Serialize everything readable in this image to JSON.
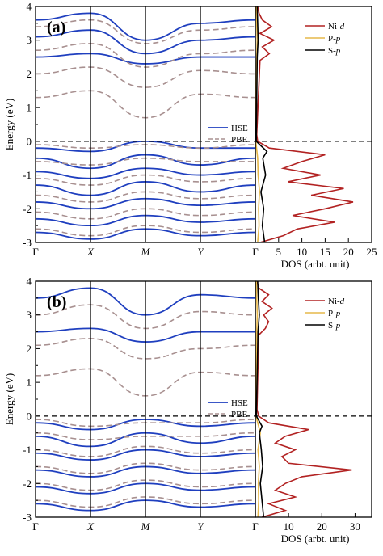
{
  "figure": {
    "panels": [
      {
        "label": "(a)",
        "band_legend": [
          {
            "name": "HSE",
            "color": "#1f3fbf",
            "dash": "solid"
          },
          {
            "name": "PBE",
            "color": "#a89090",
            "dash": "dashed"
          }
        ],
        "dos_legend": [
          {
            "name": "Ni-",
            "suffix": "d",
            "color": "#b22222"
          },
          {
            "name": "P-",
            "suffix": "p",
            "color": "#e6b84a"
          },
          {
            "name": "S-",
            "suffix": "p",
            "color": "#000000"
          }
        ],
        "dos_ticks": [
          5,
          10,
          15,
          20,
          25
        ]
      },
      {
        "label": "(b)",
        "band_legend": [
          {
            "name": "HSE",
            "color": "#1f3fbf",
            "dash": "solid"
          },
          {
            "name": "PBE",
            "color": "#a89090",
            "dash": "dashed"
          }
        ],
        "dos_legend": [
          {
            "name": "Ni-",
            "suffix": "d",
            "color": "#b22222"
          },
          {
            "name": "P-",
            "suffix": "p",
            "color": "#e6b84a"
          },
          {
            "name": "S-",
            "suffix": "p",
            "color": "#000000"
          }
        ],
        "dos_ticks": [
          10,
          20,
          30
        ]
      }
    ],
    "ylabel": "Energy (eV)",
    "dos_xlabel": "DOS (arbt. unit)"
  },
  "chart_data": [
    {
      "type": "line",
      "title": "(a)",
      "ylabel": "Energy (eV)",
      "ylim": [
        -3,
        4
      ],
      "yticks": [
        -3,
        -2,
        -1,
        0,
        1,
        2,
        3,
        4
      ],
      "kpath": [
        "Γ",
        "X",
        "M",
        "Y",
        "Γ"
      ],
      "fermi_level": 0,
      "series": [
        {
          "name": "HSE",
          "values": [
            [
              2.5,
              2.6,
              2.3,
              2.5,
              2.5
            ],
            [
              3.1,
              3.3,
              2.6,
              3.0,
              3.1
            ],
            [
              3.6,
              3.8,
              3.0,
              3.5,
              3.6
            ],
            [
              -0.2,
              -0.3,
              0.0,
              -0.2,
              -0.2
            ],
            [
              -0.5,
              -0.8,
              -0.4,
              -0.7,
              -0.5
            ],
            [
              -0.9,
              -1.1,
              -0.8,
              -1.0,
              -0.9
            ],
            [
              -1.3,
              -1.6,
              -1.2,
              -1.5,
              -1.3
            ],
            [
              -1.8,
              -2.0,
              -1.7,
              -1.9,
              -1.8
            ],
            [
              -2.3,
              -2.5,
              -2.2,
              -2.4,
              -2.3
            ],
            [
              -2.7,
              -2.9,
              -2.6,
              -2.8,
              -2.7
            ]
          ]
        },
        {
          "name": "PBE",
          "values": [
            [
              1.3,
              1.5,
              0.7,
              1.4,
              1.3
            ],
            [
              2.0,
              2.2,
              1.6,
              2.1,
              2.0
            ],
            [
              2.7,
              2.9,
              2.2,
              2.6,
              2.7
            ],
            [
              3.4,
              3.6,
              2.9,
              3.3,
              3.4
            ],
            [
              -0.1,
              -0.2,
              -0.1,
              -0.2,
              -0.1
            ],
            [
              -0.6,
              -0.7,
              -0.5,
              -0.6,
              -0.6
            ],
            [
              -1.1,
              -1.3,
              -1.0,
              -1.2,
              -1.1
            ],
            [
              -1.6,
              -1.8,
              -1.5,
              -1.7,
              -1.6
            ],
            [
              -2.1,
              -2.3,
              -2.0,
              -2.2,
              -2.1
            ],
            [
              -2.6,
              -2.8,
              -2.5,
              -2.7,
              -2.6
            ]
          ]
        }
      ],
      "dos": {
        "xlabel": "DOS (arbt. unit)",
        "xlim": [
          0,
          25
        ],
        "xticks": [
          5,
          10,
          15,
          20,
          25
        ],
        "series": [
          {
            "name": "Ni-d",
            "energy": [
              -3.0,
              -2.8,
              -2.6,
              -2.4,
              -2.2,
              -2.0,
              -1.8,
              -1.6,
              -1.4,
              -1.2,
              -1.0,
              -0.8,
              -0.6,
              -0.4,
              -0.2,
              0.0,
              0.2,
              2.4,
              2.6,
              2.8,
              3.0,
              3.2,
              3.4,
              3.6,
              3.8,
              4.0
            ],
            "values": [
              1,
              6,
              9,
              17,
              8,
              15,
              21,
              12,
              19,
              7,
              14,
              6,
              10,
              15,
              3,
              0.5,
              0.3,
              1,
              3,
              1.5,
              4,
              1,
              3.5,
              1.5,
              0.8,
              0.5
            ]
          },
          {
            "name": "P-p",
            "energy": [
              -3.0,
              -2.5,
              -2.0,
              -1.5,
              -1.0,
              -0.5,
              0.0,
              2.5,
              3.0,
              3.5,
              4.0
            ],
            "values": [
              0.5,
              0.8,
              0.7,
              0.9,
              0.6,
              0.5,
              0.1,
              0.3,
              0.4,
              0.3,
              0.2
            ]
          },
          {
            "name": "S-p",
            "energy": [
              -3.0,
              -2.5,
              -2.0,
              -1.5,
              -1.0,
              -0.5,
              -0.3,
              0.0,
              2.5,
              3.0,
              3.5,
              4.0
            ],
            "values": [
              2,
              1.5,
              1.8,
              1.2,
              2.2,
              1.6,
              2.5,
              0.2,
              0.4,
              0.6,
              0.5,
              0.4
            ]
          }
        ]
      }
    },
    {
      "type": "line",
      "title": "(b)",
      "ylabel": "Energy (eV)",
      "ylim": [
        -3,
        4
      ],
      "yticks": [
        -3,
        -2,
        -1,
        0,
        1,
        2,
        3,
        4
      ],
      "kpath": [
        "Γ",
        "X",
        "M",
        "Y",
        "Γ"
      ],
      "fermi_level": 0,
      "series": [
        {
          "name": "HSE",
          "values": [
            [
              2.5,
              2.6,
              2.2,
              2.5,
              2.5
            ],
            [
              3.5,
              3.8,
              3.0,
              3.6,
              3.5
            ],
            [
              -0.2,
              -0.4,
              -0.1,
              -0.3,
              -0.2
            ],
            [
              -0.6,
              -0.9,
              -0.5,
              -0.8,
              -0.6
            ],
            [
              -1.1,
              -1.3,
              -1.0,
              -1.2,
              -1.1
            ],
            [
              -1.6,
              -1.8,
              -1.5,
              -1.7,
              -1.6
            ],
            [
              -2.1,
              -2.3,
              -2.0,
              -2.2,
              -2.1
            ],
            [
              -2.6,
              -2.8,
              -2.5,
              -2.7,
              -2.6
            ]
          ]
        },
        {
          "name": "PBE",
          "values": [
            [
              1.2,
              1.4,
              0.6,
              1.3,
              1.2
            ],
            [
              2.1,
              2.3,
              1.7,
              2.0,
              2.1
            ],
            [
              3.0,
              3.3,
              2.6,
              3.1,
              3.0
            ],
            [
              -0.1,
              -0.3,
              -0.2,
              -0.2,
              -0.1
            ],
            [
              -0.5,
              -0.7,
              -0.6,
              -0.6,
              -0.5
            ],
            [
              -1.0,
              -1.2,
              -0.9,
              -1.1,
              -1.0
            ],
            [
              -1.5,
              -1.7,
              -1.4,
              -1.6,
              -1.5
            ],
            [
              -2.0,
              -2.2,
              -1.9,
              -2.1,
              -2.0
            ],
            [
              -2.5,
              -2.7,
              -2.4,
              -2.6,
              -2.5
            ]
          ]
        }
      ],
      "dos": {
        "xlabel": "DOS (arbt. unit)",
        "xlim": [
          0,
          35
        ],
        "xticks": [
          10,
          20,
          30
        ],
        "series": [
          {
            "name": "Ni-d",
            "energy": [
              -3.0,
              -2.8,
              -2.6,
              -2.4,
              -2.2,
              -2.0,
              -1.8,
              -1.6,
              -1.4,
              -1.2,
              -1.0,
              -0.8,
              -0.6,
              -0.4,
              -0.2,
              0.0,
              0.2,
              2.4,
              2.6,
              2.8,
              3.0,
              3.2,
              3.4,
              3.6,
              3.8,
              4.0
            ],
            "values": [
              2,
              9,
              4,
              12,
              6,
              9,
              14,
              29,
              10,
              8,
              12,
              6,
              9,
              16,
              4,
              1,
              0.5,
              1,
              3,
              4,
              2.5,
              5,
              2,
              4,
              1,
              0.5
            ]
          },
          {
            "name": "P-p",
            "energy": [
              -3.0,
              -2.5,
              -2.0,
              -1.5,
              -1.0,
              -0.5,
              0.0,
              2.5,
              3.0,
              3.5,
              4.0
            ],
            "values": [
              0.8,
              1.0,
              0.9,
              1.2,
              0.8,
              1.5,
              0.2,
              0.4,
              0.6,
              0.4,
              0.3
            ]
          },
          {
            "name": "S-p",
            "energy": [
              -3.0,
              -2.5,
              -2.0,
              -1.5,
              -1.0,
              -0.5,
              -0.3,
              0.0,
              2.5,
              3.0,
              3.5,
              4.0
            ],
            "values": [
              2.5,
              2.0,
              1.5,
              2.2,
              1.8,
              1.2,
              2.0,
              0.3,
              0.8,
              1.2,
              0.9,
              0.7
            ]
          }
        ]
      }
    }
  ]
}
